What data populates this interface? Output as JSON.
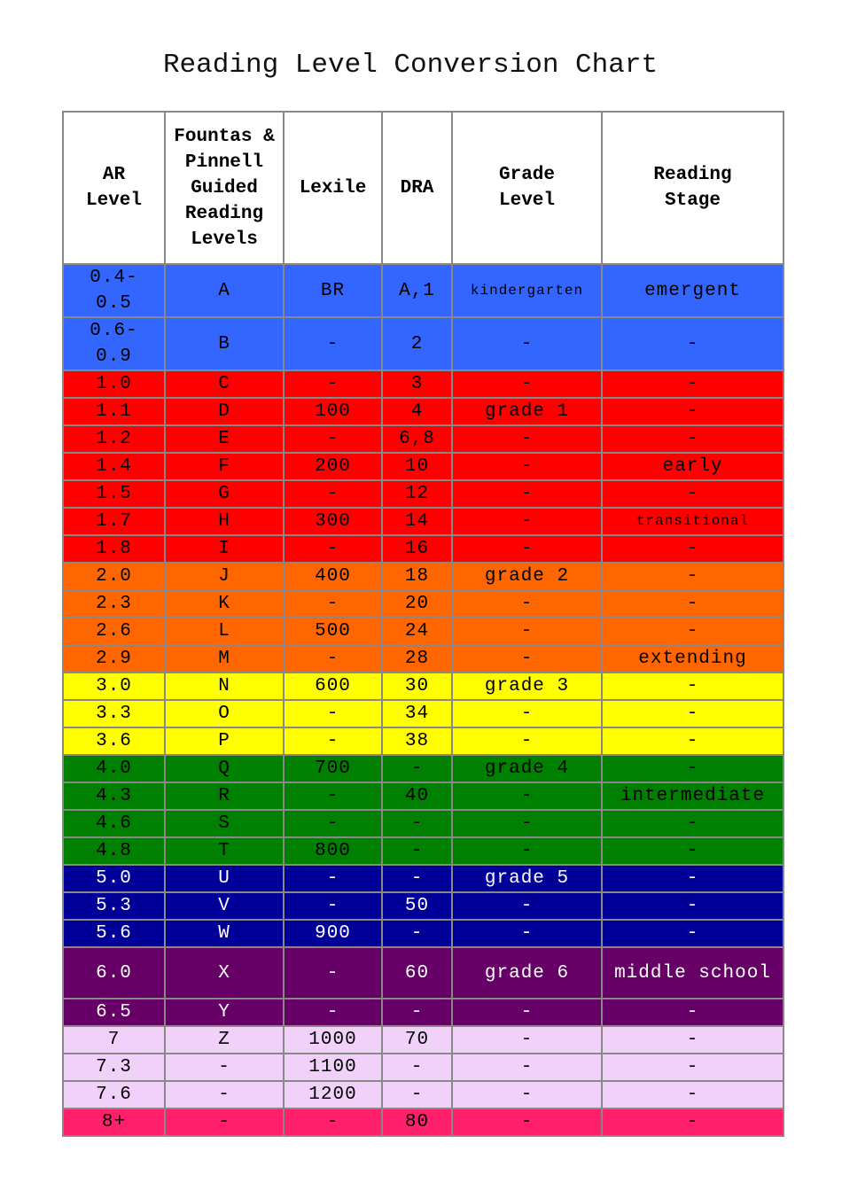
{
  "title": "Reading Level Conversion Chart",
  "headers": [
    "AR Level",
    "Fountas & Pinnell Guided Reading Levels",
    "Lexile",
    "DRA",
    "Grade Level",
    "Reading Stage"
  ],
  "colors": {
    "blue": "#3366ff",
    "red": "#ff0000",
    "orange": "#ff6600",
    "yellow": "#ffff00",
    "green": "#008000",
    "navy": "#000099",
    "purple": "#660066",
    "lavender": "#f1d0f9",
    "pink": "#ff1f6a"
  },
  "rows": [
    {
      "cells": [
        "0.4-0.5",
        "A",
        "BR",
        "A,1",
        "kindergarten",
        "emergent"
      ],
      "color": "blue"
    },
    {
      "cells": [
        "0.6-0.9",
        "B",
        "-",
        "2",
        "-",
        "-"
      ],
      "color": "blue"
    },
    {
      "cells": [
        "1.0",
        "C",
        "-",
        "3",
        "-",
        "-"
      ],
      "color": "red"
    },
    {
      "cells": [
        "1.1",
        "D",
        "100",
        "4",
        "grade 1",
        "-"
      ],
      "color": "red"
    },
    {
      "cells": [
        "1.2",
        "E",
        "-",
        "6,8",
        "-",
        "-"
      ],
      "color": "red"
    },
    {
      "cells": [
        "1.4",
        "F",
        "200",
        "10",
        "-",
        "early"
      ],
      "color": "red"
    },
    {
      "cells": [
        "1.5",
        "G",
        "-",
        "12",
        "-",
        "-"
      ],
      "color": "red"
    },
    {
      "cells": [
        "1.7",
        "H",
        "300",
        "14",
        "-",
        "transitional"
      ],
      "color": "red"
    },
    {
      "cells": [
        "1.8",
        "I",
        "-",
        "16",
        "-",
        "-"
      ],
      "color": "red"
    },
    {
      "cells": [
        "2.0",
        "J",
        "400",
        "18",
        "grade 2",
        "-"
      ],
      "color": "orange"
    },
    {
      "cells": [
        "2.3",
        "K",
        "-",
        "20",
        "-",
        "-"
      ],
      "color": "orange"
    },
    {
      "cells": [
        "2.6",
        "L",
        "500",
        "24",
        "-",
        "-"
      ],
      "color": "orange"
    },
    {
      "cells": [
        "2.9",
        "M",
        "-",
        "28",
        "-",
        "extending"
      ],
      "color": "orange"
    },
    {
      "cells": [
        "3.0",
        "N",
        "600",
        "30",
        "grade 3",
        "-"
      ],
      "color": "yellow"
    },
    {
      "cells": [
        "3.3",
        "O",
        "-",
        "34",
        "-",
        "-"
      ],
      "color": "yellow"
    },
    {
      "cells": [
        "3.6",
        "P",
        "-",
        "38",
        "-",
        "-"
      ],
      "color": "yellow"
    },
    {
      "cells": [
        "4.0",
        "Q",
        "700",
        "-",
        "grade 4",
        "-"
      ],
      "color": "green"
    },
    {
      "cells": [
        "4.3",
        "R",
        "-",
        "40",
        "-",
        "intermediate"
      ],
      "color": "green"
    },
    {
      "cells": [
        "4.6",
        "S",
        "-",
        "-",
        "-",
        "-"
      ],
      "color": "green"
    },
    {
      "cells": [
        "4.8",
        "T",
        "800",
        "-",
        "-",
        "-"
      ],
      "color": "green"
    },
    {
      "cells": [
        "5.0",
        "U",
        "-",
        "-",
        "grade 5",
        "-"
      ],
      "color": "navy"
    },
    {
      "cells": [
        "5.3",
        "V",
        "-",
        "50",
        "-",
        "-"
      ],
      "color": "navy"
    },
    {
      "cells": [
        "5.6",
        "W",
        "900",
        "-",
        "-",
        "-"
      ],
      "color": "navy"
    },
    {
      "cells": [
        "6.0",
        "X",
        "-",
        "60",
        "grade 6",
        "middle school"
      ],
      "color": "purple"
    },
    {
      "cells": [
        "6.5",
        "Y",
        "-",
        "-",
        "-",
        "-"
      ],
      "color": "purple"
    },
    {
      "cells": [
        "7",
        "Z",
        "1000",
        "70",
        "-",
        "-"
      ],
      "color": "lavender"
    },
    {
      "cells": [
        "7.3",
        "-",
        "1100",
        "-",
        "-",
        "-"
      ],
      "color": "lavender"
    },
    {
      "cells": [
        "7.6",
        "-",
        "1200",
        "-",
        "-",
        "-"
      ],
      "color": "lavender"
    },
    {
      "cells": [
        "8+",
        "-",
        "-",
        "80",
        "-",
        "-"
      ],
      "color": "pink"
    }
  ]
}
